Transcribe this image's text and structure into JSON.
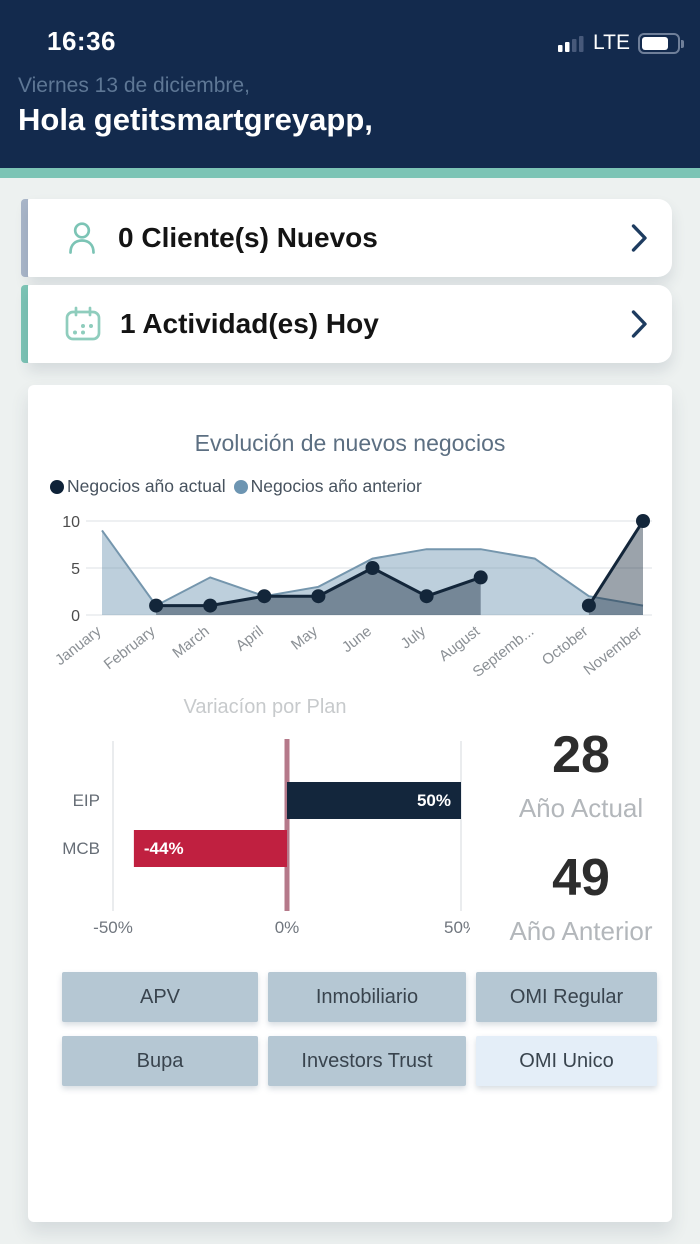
{
  "status_bar": {
    "time": "16:36",
    "network": "LTE"
  },
  "header": {
    "date": "Viernes 13 de diciembre,",
    "greeting": "Hola getitsmartgreyapp,"
  },
  "cards": {
    "clients": {
      "label": "0 Cliente(s) Nuevos",
      "icon": "person-icon",
      "accent_color": "#a9b6c9"
    },
    "activities": {
      "label": "1 Actividad(es) Hoy",
      "icon": "calendar-icon",
      "accent_color": "#7cc4b5"
    }
  },
  "dashboard": {
    "totals": {
      "current_value": "28",
      "current_label": "Año Actual",
      "previous_value": "49",
      "previous_label": "Año Anterior"
    },
    "plan_buttons": [
      {
        "label": "APV",
        "variant": "normal"
      },
      {
        "label": "Inmobiliario",
        "variant": "normal"
      },
      {
        "label": "OMI Regular",
        "variant": "normal"
      },
      {
        "label": "Bupa",
        "variant": "normal"
      },
      {
        "label": "Investors Trust",
        "variant": "normal"
      },
      {
        "label": "OMI Unico",
        "variant": "light"
      }
    ]
  },
  "chart_data": [
    {
      "type": "area",
      "title": "Evolución de nuevos negocios",
      "categories": [
        "January",
        "February",
        "March",
        "April",
        "May",
        "June",
        "July",
        "August",
        "September",
        "October",
        "November"
      ],
      "x_tick_labels": [
        "January",
        "February",
        "March",
        "April",
        "May",
        "June",
        "July",
        "August",
        "Septemb...",
        "October",
        "November"
      ],
      "series": [
        {
          "name": "Negocios año actual",
          "color": "#13263a",
          "legend_dot": "#0e2238",
          "fill": "rgba(16,35,54,0.42)",
          "values": [
            null,
            1,
            1,
            2,
            2,
            5,
            2,
            4,
            null,
            1,
            10
          ]
        },
        {
          "name": "Negocios año anterior",
          "color": "#7596ad",
          "legend_dot": "#6d95b2",
          "fill": "rgba(109,149,178,0.45)",
          "values": [
            9,
            1,
            4,
            2,
            3,
            6,
            7,
            7,
            6,
            2,
            1
          ]
        }
      ],
      "ylim": [
        0,
        10
      ],
      "yticks": [
        0,
        5,
        10
      ],
      "grid": "horizontal",
      "legend_position": "top-left"
    },
    {
      "type": "bar",
      "orientation": "horizontal",
      "title": "Variacíon por Plan",
      "categories": [
        "EIP",
        "MCB"
      ],
      "values": [
        50,
        -44
      ],
      "data_labels": [
        "50%",
        "-44%"
      ],
      "bar_colors": [
        "#13263c",
        "#c02040"
      ],
      "xlim": [
        -50,
        50
      ],
      "xticks": [
        "-50%",
        "0%",
        "50%"
      ],
      "xtick_values": [
        -50,
        0,
        50
      ],
      "zero_line_color": "#b5798a",
      "grid": "vertical"
    }
  ]
}
